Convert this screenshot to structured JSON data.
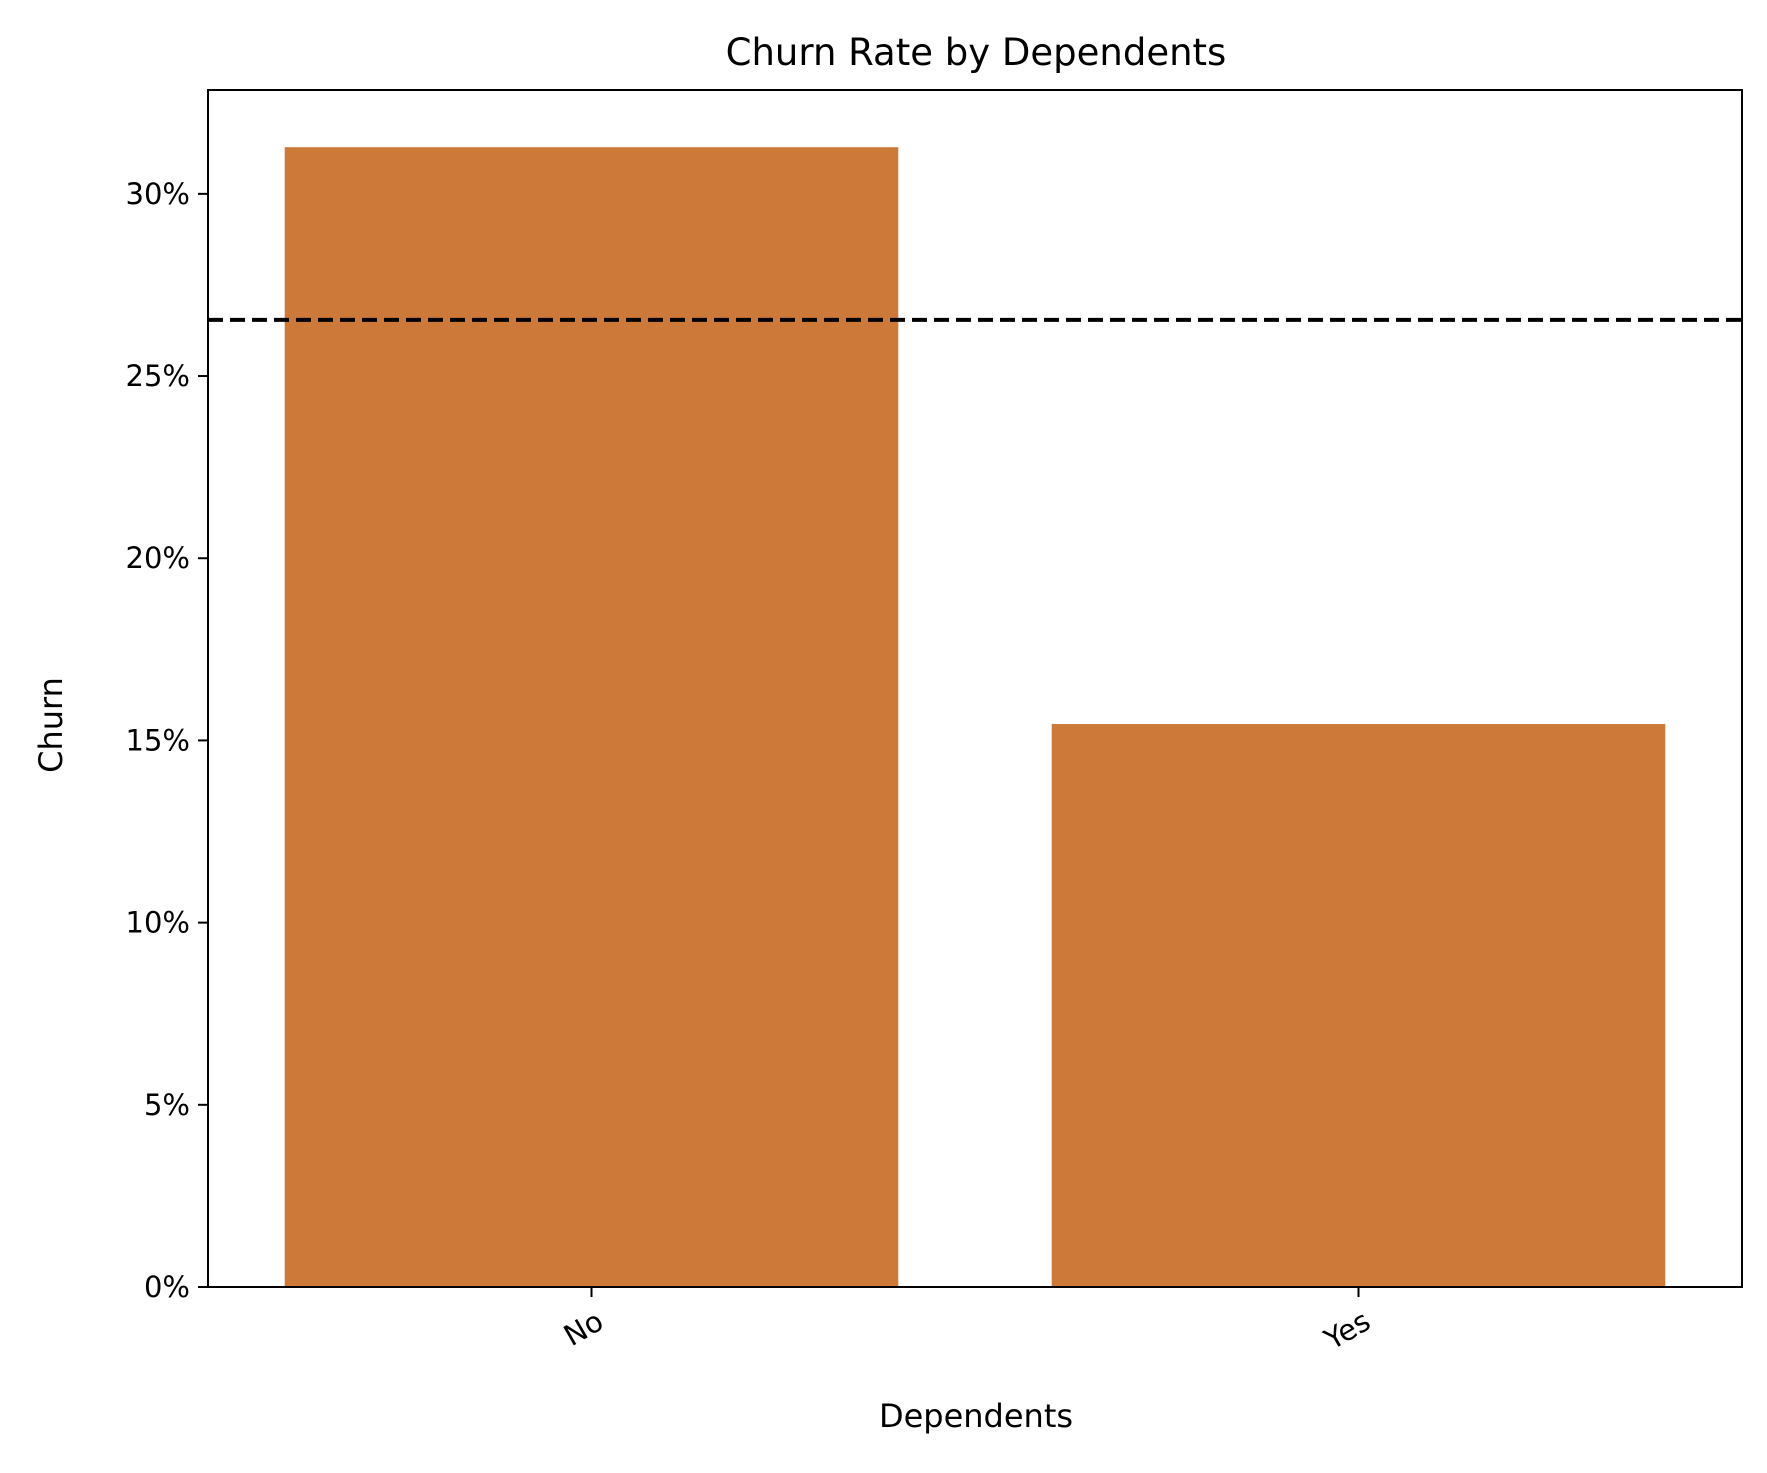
{
  "chart_data": {
    "type": "bar",
    "title": "Churn Rate by Dependents",
    "xlabel": "Dependents",
    "ylabel": "Churn",
    "categories": [
      "No",
      "Yes"
    ],
    "values": [
      0.3128,
      0.1545
    ],
    "ylim": [
      0,
      0.3285
    ],
    "yticks": [
      0,
      0.05,
      0.1,
      0.15,
      0.2,
      0.25,
      0.3
    ],
    "ytick_labels": [
      "0%",
      "5%",
      "10%",
      "15%",
      "20%",
      "25%",
      "30%"
    ],
    "reference_line": {
      "y": 0.2654,
      "style": "dashed",
      "color": "#000000"
    },
    "bar_color": "#cd793a",
    "grid": false,
    "legend": "none"
  }
}
